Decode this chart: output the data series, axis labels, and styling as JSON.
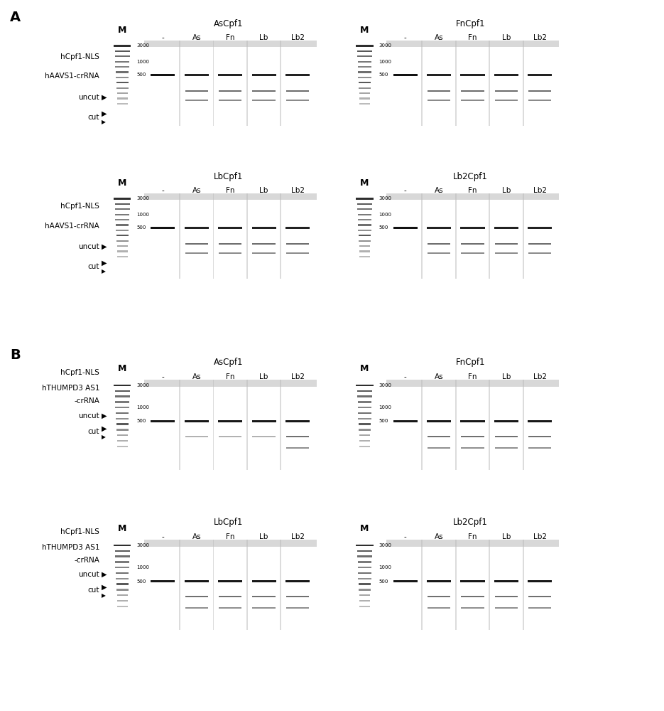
{
  "bg_color": "#ffffff",
  "gel_bg": "#c8c8c8",
  "panels_A": [
    {
      "row": 0,
      "col": 0,
      "title": "AsCpf1",
      "col_labels": [
        "-",
        "As",
        "Fn",
        "Lb",
        "Lb2"
      ],
      "marker_label": "M"
    },
    {
      "row": 0,
      "col": 1,
      "title": "FnCpf1",
      "col_labels": [
        "-",
        "As",
        "Fn",
        "Lb",
        "Lb2"
      ],
      "marker_label": "M"
    },
    {
      "row": 1,
      "col": 0,
      "title": "LbCpf1",
      "col_labels": [
        "-",
        "As",
        "Fn",
        "Lb",
        "Lb2"
      ],
      "marker_label": "M"
    },
    {
      "row": 1,
      "col": 1,
      "title": "Lb2Cpf1",
      "col_labels": [
        "-",
        "As",
        "Fn",
        "Lb",
        "Lb2"
      ],
      "marker_label": "M"
    }
  ],
  "panels_B": [
    {
      "row": 0,
      "col": 0,
      "title": "AsCpf1",
      "col_labels": [
        "-",
        "As",
        "Fn",
        "Lb",
        "Lb2"
      ],
      "marker_label": "M"
    },
    {
      "row": 0,
      "col": 1,
      "title": "FnCpf1",
      "col_labels": [
        "-",
        "As",
        "Fn",
        "Lb",
        "Lb2"
      ],
      "marker_label": "M"
    },
    {
      "row": 1,
      "col": 0,
      "title": "LbCpf1",
      "col_labels": [
        "-",
        "As",
        "Fn",
        "Lb",
        "Lb2"
      ],
      "marker_label": "M"
    },
    {
      "row": 1,
      "col": 1,
      "title": "Lb2Cpf1",
      "col_labels": [
        "-",
        "As",
        "Fn",
        "Lb",
        "Lb2"
      ],
      "marker_label": "M"
    }
  ]
}
